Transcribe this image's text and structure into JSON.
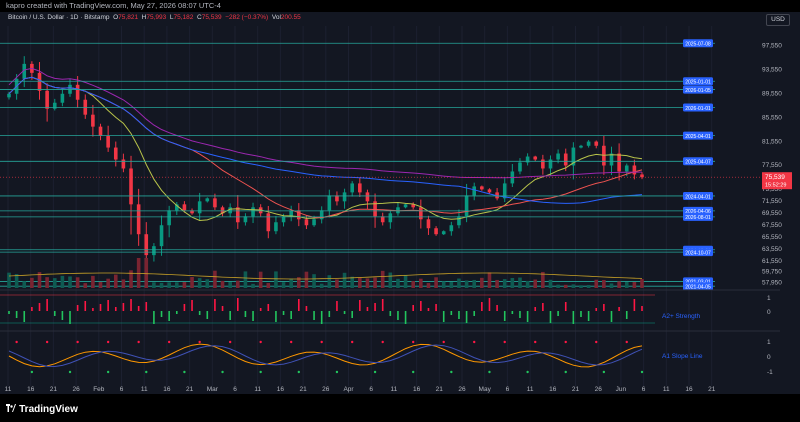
{
  "header": {
    "caption": "kapro created with TradingView.com, May 27, 2026 08:07 UTC-4"
  },
  "legend": {
    "symbol": "Bitcoin / U.S. Dollar · 1D · Bitstamp",
    "o": "75,821",
    "h": "75,993",
    "l": "75,182",
    "c": "75,539",
    "change": "−282 (−0.37%)",
    "vol": "200.55"
  },
  "currency": "USD",
  "brand": "TradingView",
  "chart_data": {
    "type": "candlestick",
    "price_axis": {
      "min": 57000,
      "max": 99500,
      "ticks": [
        97550,
        93550,
        89550,
        85550,
        81550,
        77550,
        73550,
        71550,
        69550,
        67550,
        65550,
        63550,
        61550,
        59750,
        57950
      ]
    },
    "last_price": {
      "value": 75539,
      "label": "75,539",
      "countdown": "15:52:29",
      "color": "#f23645"
    },
    "date_axis": {
      "labels": [
        "11",
        "16",
        "21",
        "26",
        "Feb",
        "6",
        "11",
        "16",
        "21",
        "Mar",
        "6",
        "11",
        "16",
        "21",
        "26",
        "Apr",
        "6",
        "11",
        "16",
        "21",
        "26",
        "May",
        "6",
        "11",
        "16",
        "21",
        "26",
        "Jun",
        "6",
        "11",
        "16",
        "21"
      ]
    },
    "levels": [
      {
        "price": 97950,
        "label": "2025-07-08"
      },
      {
        "price": 91600,
        "label": "2025-01-01"
      },
      {
        "price": 90200,
        "label": "2026-01-05"
      },
      {
        "price": 87200,
        "label": "2026-01-01"
      },
      {
        "price": 82500,
        "label": "2025-04-01"
      },
      {
        "price": 78200,
        "label": "2025-04-07"
      },
      {
        "price": 72400,
        "label": "2024-04-01"
      },
      {
        "price": 69900,
        "label": "2026-04-06"
      },
      {
        "price": 68900,
        "label": "2026-08-01"
      },
      {
        "price": 63400,
        "label": "2024-10-01"
      },
      {
        "price": 63000,
        "label": "2024-10-07"
      },
      {
        "price": 58100,
        "label": "2021-03-01"
      },
      {
        "price": 57300,
        "label": "2021-04-05"
      }
    ],
    "ohlc_anchor_closes": [
      89500,
      92000,
      94500,
      93000,
      90000,
      87000,
      88000,
      89500,
      91000,
      88500,
      86000,
      84000,
      82500,
      80500,
      78500,
      77000,
      71000,
      66000,
      62500,
      64000,
      67500,
      70000,
      71000,
      70000,
      69500,
      71500,
      72000,
      70500,
      69500,
      70500,
      68000,
      69000,
      70500,
      69500,
      66500,
      68000,
      69000,
      70000,
      68500,
      67500,
      68500,
      70000,
      72500,
      71500,
      73000,
      74500,
      73000,
      71500,
      69000,
      68000,
      69500,
      70500,
      71000,
      70500,
      68500,
      67000,
      66000,
      66500,
      67500,
      69000,
      72500,
      74000,
      73500,
      73000,
      72000,
      74500,
      76500,
      78000,
      79000,
      78500,
      77000,
      78500,
      79500,
      77500,
      80500,
      80800,
      81500,
      80800,
      77500,
      79500,
      76500,
      77500,
      76000,
      75539
    ],
    "panels": [
      {
        "name": "A2+ Strength",
        "color": "#2962ff",
        "scale_labels": [
          "1",
          "0",
          "-1"
        ]
      },
      {
        "name": "A1 Slope Line",
        "color": "#2962ff",
        "scale_labels": [
          "1",
          "0",
          "-1"
        ]
      }
    ],
    "colors": {
      "up": "#089981",
      "down": "#f23645",
      "spike_up": "#22c55e",
      "spike_down": "#ff1744",
      "level": "#26a69a",
      "tag": "#2962ff"
    }
  }
}
